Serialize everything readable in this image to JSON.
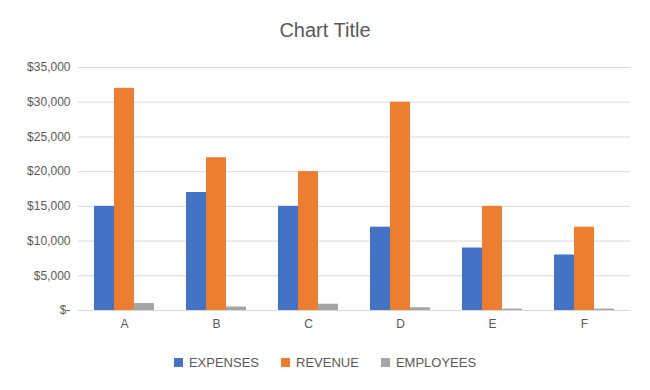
{
  "chart_data": {
    "type": "bar",
    "title": "Chart Title",
    "categories": [
      "A",
      "B",
      "C",
      "D",
      "E",
      "F"
    ],
    "series": [
      {
        "name": "EXPENSES",
        "color": "#4472c4",
        "values": [
          15000,
          17000,
          15000,
          12000,
          9000,
          8000
        ]
      },
      {
        "name": "REVENUE",
        "color": "#ed7d31",
        "values": [
          32000,
          22000,
          20000,
          30000,
          15000,
          12000
        ]
      },
      {
        "name": "EMPLOYEES",
        "color": "#a5a5a5",
        "values": [
          1000,
          500,
          900,
          400,
          200,
          200
        ]
      }
    ],
    "ylim": [
      0,
      35000
    ],
    "yticks": [
      {
        "value": 0,
        "label": "$-"
      },
      {
        "value": 5000,
        "label": "$5,000"
      },
      {
        "value": 10000,
        "label": "$10,000"
      },
      {
        "value": 15000,
        "label": "$15,000"
      },
      {
        "value": 20000,
        "label": "$20,000"
      },
      {
        "value": 25000,
        "label": "$25,000"
      },
      {
        "value": 30000,
        "label": "$30,000"
      },
      {
        "value": 35000,
        "label": "$35,000"
      }
    ],
    "grid": true,
    "legend": "bottom"
  }
}
